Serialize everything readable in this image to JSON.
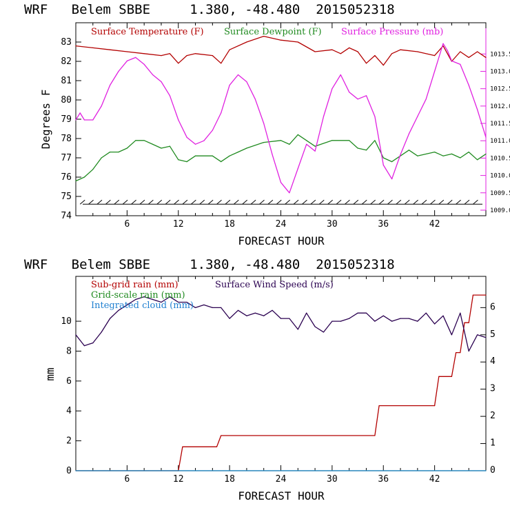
{
  "top_title": "WRF   Belem SBBE     1.380, -48.480  2015052318",
  "bottom_title": "WRF   Belem SBBE     1.380, -48.480  2015052318",
  "colors": {
    "temperature": "#b30000",
    "dewpoint": "#1f8a1f",
    "pressure": "#e020e0",
    "subgrid": "#b30000",
    "gridscale": "#1f8a1f",
    "cloud": "#1e7fd0",
    "wind": "#2a0050"
  },
  "chart_data": [
    {
      "type": "line",
      "title": "WRF   Belem SBBE     1.380, -48.480  2015052318",
      "xlabel": "FORECAST HOUR",
      "ylabel": "Degrees F",
      "xlim": [
        0,
        48
      ],
      "ylim": [
        74,
        84
      ],
      "y2lim": [
        1008.84,
        1014.4
      ],
      "xticks": [
        "6",
        "12",
        "18",
        "24",
        "30",
        "36",
        "42"
      ],
      "yticks": [
        "74",
        "75",
        "76",
        "77",
        "78",
        "79",
        "80",
        "81",
        "82",
        "83"
      ],
      "y2ticks": [
        "1009.0",
        "1009.5",
        "1010.0",
        "1010.5",
        "1011.0",
        "1011.5",
        "1012.0",
        "1012.5",
        "1013.0",
        "1013.5"
      ],
      "legend_placement": "top",
      "series": [
        {
          "name": "Surface Temperature (F)",
          "axis": "left",
          "x": [
            0,
            2,
            4,
            6,
            8,
            10,
            11,
            12,
            13,
            14,
            16,
            17,
            18,
            20,
            22,
            24,
            26,
            28,
            30,
            31,
            32,
            33,
            34,
            35,
            36,
            37,
            38,
            40,
            42,
            43,
            44,
            45,
            46,
            47,
            48
          ],
          "values": [
            82.8,
            82.7,
            82.6,
            82.5,
            82.4,
            82.3,
            82.4,
            81.9,
            82.3,
            82.4,
            82.3,
            81.9,
            82.6,
            83.0,
            83.3,
            83.1,
            83.0,
            82.5,
            82.6,
            82.4,
            82.7,
            82.5,
            81.9,
            82.3,
            81.8,
            82.4,
            82.6,
            82.5,
            82.3,
            82.8,
            82.0,
            82.5,
            82.2,
            82.5,
            82.2
          ]
        },
        {
          "name": "Surface Dewpoint (F)",
          "axis": "left",
          "x": [
            0,
            1,
            2,
            3,
            4,
            5,
            6,
            7,
            8,
            9,
            10,
            11,
            12,
            13,
            14,
            16,
            17,
            18,
            19,
            20,
            22,
            24,
            25,
            26,
            27,
            28,
            30,
            32,
            33,
            34,
            35,
            36,
            37,
            38,
            39,
            40,
            42,
            43,
            44,
            45,
            46,
            47,
            48
          ],
          "values": [
            75.8,
            76.0,
            76.4,
            77.0,
            77.3,
            77.3,
            77.5,
            77.9,
            77.9,
            77.7,
            77.5,
            77.6,
            76.9,
            76.8,
            77.1,
            77.1,
            76.8,
            77.1,
            77.3,
            77.5,
            77.8,
            77.9,
            77.7,
            78.2,
            77.9,
            77.6,
            77.9,
            77.9,
            77.5,
            77.4,
            77.9,
            77.0,
            76.8,
            77.1,
            77.4,
            77.1,
            77.3,
            77.1,
            77.2,
            77.0,
            77.3,
            76.9,
            77.2
          ]
        },
        {
          "name": "Surface Pressure (mb)",
          "axis": "right",
          "x": [
            0,
            0.5,
            1,
            2,
            3,
            4,
            5,
            6,
            7,
            8,
            9,
            10,
            11,
            12,
            13,
            14,
            15,
            16,
            17,
            18,
            19,
            20,
            21,
            22,
            23,
            24,
            25,
            26,
            27,
            28,
            29,
            30,
            31,
            32,
            33,
            34,
            35,
            36,
            37,
            38,
            39,
            40,
            41,
            42,
            43,
            43.5,
            44,
            45,
            46,
            47,
            48
          ],
          "values": [
            1011.6,
            1011.8,
            1011.6,
            1011.6,
            1012.0,
            1012.6,
            1013.0,
            1013.3,
            1013.4,
            1013.2,
            1012.9,
            1012.7,
            1012.3,
            1011.6,
            1011.1,
            1010.9,
            1011.0,
            1011.3,
            1011.8,
            1012.6,
            1012.9,
            1012.7,
            1012.2,
            1011.5,
            1010.6,
            1009.8,
            1009.5,
            1010.2,
            1010.9,
            1010.7,
            1011.7,
            1012.5,
            1012.9,
            1012.4,
            1012.2,
            1012.3,
            1011.7,
            1010.3,
            1009.9,
            1010.6,
            1011.2,
            1011.7,
            1012.2,
            1013.0,
            1013.8,
            1013.6,
            1013.3,
            1013.2,
            1012.6,
            1011.9,
            1011.1
          ]
        }
      ],
      "wind_barbs_level": 74.6
    },
    {
      "type": "line",
      "title": "WRF   Belem SBBE     1.380, -48.480  2015052318",
      "xlabel": "FORECAST HOUR",
      "ylabel": "mm",
      "xlim": [
        0,
        48
      ],
      "ylim": [
        0,
        13
      ],
      "y2lim": [
        0,
        7.15
      ],
      "xticks": [
        "6",
        "12",
        "18",
        "24",
        "30",
        "36",
        "42"
      ],
      "yticks": [
        "0",
        "2",
        "4",
        "6",
        "8",
        "10"
      ],
      "y2ticks": [
        "0",
        "1",
        "2",
        "3",
        "4",
        "5",
        "6"
      ],
      "legend_placement": "top-left",
      "series": [
        {
          "name": "Sub-grid rain (mm)",
          "axis": "left",
          "x": [
            0,
            12,
            12.5,
            16.5,
            17,
            35,
            35.5,
            42,
            42.5,
            44,
            44.5,
            45,
            45.5,
            46,
            46.5,
            48
          ],
          "values": [
            0,
            0,
            1.6,
            1.6,
            2.35,
            2.35,
            4.35,
            4.35,
            6.3,
            6.3,
            7.9,
            7.9,
            9.9,
            9.9,
            11.75,
            11.75
          ]
        },
        {
          "name": "Grid-scale rain (mm)",
          "axis": "left",
          "x": [
            0,
            48
          ],
          "values": [
            0,
            0
          ]
        },
        {
          "name": "Integrated cloud (mm)",
          "axis": "left",
          "x": [
            0,
            48
          ],
          "values": [
            0,
            0
          ]
        },
        {
          "name": "Surface Wind Speed (m/s)",
          "axis": "right",
          "x": [
            0,
            1,
            2,
            3,
            4,
            5,
            6,
            7,
            8,
            9,
            10,
            11,
            12,
            13,
            14,
            15,
            16,
            17,
            18,
            19,
            20,
            21,
            22,
            23,
            24,
            25,
            26,
            27,
            28,
            29,
            30,
            31,
            32,
            33,
            34,
            35,
            36,
            37,
            38,
            39,
            40,
            41,
            42,
            43,
            44,
            45,
            46,
            47,
            48
          ],
          "values": [
            5.0,
            4.6,
            4.7,
            5.1,
            5.6,
            5.9,
            6.1,
            6.3,
            6.4,
            6.3,
            6.2,
            6.4,
            6.2,
            6.2,
            6.0,
            6.1,
            6.0,
            6.0,
            5.6,
            5.9,
            5.7,
            5.8,
            5.7,
            5.9,
            5.6,
            5.6,
            5.2,
            5.8,
            5.3,
            5.1,
            5.5,
            5.5,
            5.6,
            5.8,
            5.8,
            5.5,
            5.7,
            5.5,
            5.6,
            5.6,
            5.5,
            5.8,
            5.4,
            5.7,
            5.0,
            5.8,
            4.4,
            5.0,
            4.9
          ]
        }
      ]
    }
  ]
}
